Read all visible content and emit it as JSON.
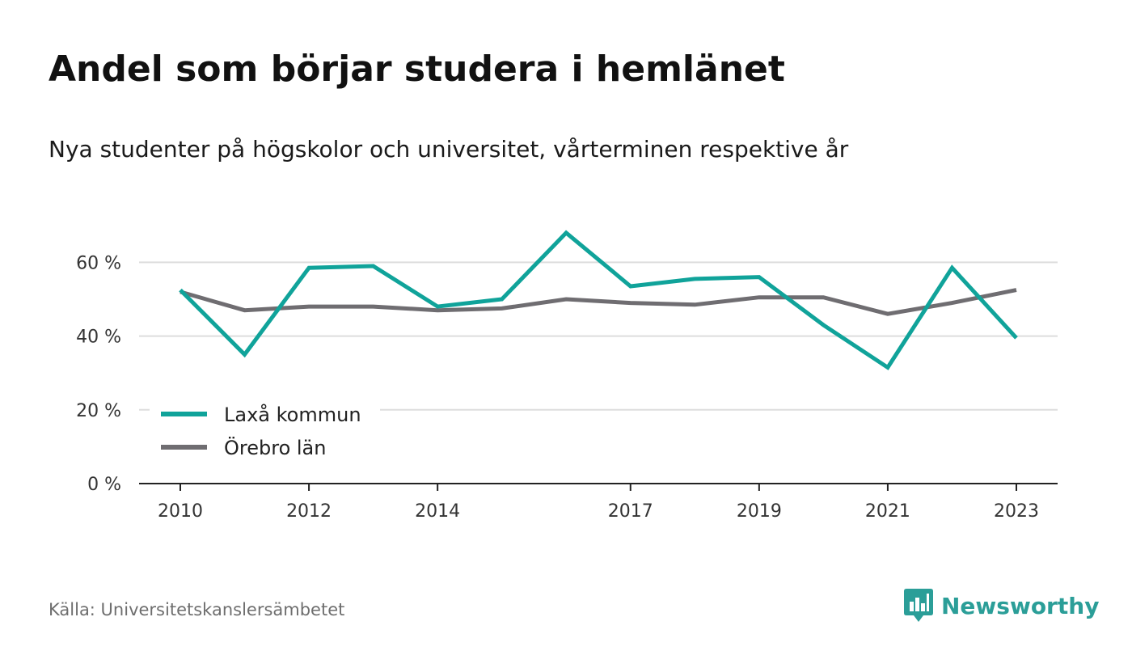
{
  "header": {
    "title": "Andel som börjar studera i hemlänet",
    "subtitle": "Nya studenter på högskolor och universitet, vårterminen respektive år"
  },
  "footer": {
    "source": "Källa: Universitetskanslersämbetet",
    "brand": "Newsworthy"
  },
  "colors": {
    "laxa": "#10a39a",
    "orebro": "#6f6d71",
    "brand": "#2b9e98",
    "grid": "#dddddd",
    "axis": "#222222"
  },
  "icons": {
    "logo": "newsworthy-bar-chart-speech-bubble-icon"
  },
  "chart_data": {
    "type": "line",
    "x": [
      2010,
      2011,
      2012,
      2013,
      2014,
      2015,
      2016,
      2017,
      2018,
      2019,
      2020,
      2021,
      2022,
      2023
    ],
    "x_tick_labels": [
      "2010",
      "2012",
      "2014",
      "2017",
      "2019",
      "2021",
      "2023"
    ],
    "y_ticks": [
      0,
      20,
      40,
      60
    ],
    "y_tick_labels": [
      "0 %",
      "20 %",
      "40 %",
      "60 %"
    ],
    "ylim": [
      0,
      70
    ],
    "grid": true,
    "legend_position": "bottom-left",
    "series": [
      {
        "name": "Laxå kommun",
        "values": [
          52.5,
          35,
          58.5,
          59,
          48,
          50,
          68,
          53.5,
          55.5,
          56,
          43,
          31.5,
          58.5,
          39.5
        ]
      },
      {
        "name": "Örebro län",
        "values": [
          52,
          47,
          48,
          48,
          47,
          47.5,
          50,
          49,
          48.5,
          50.5,
          50.5,
          46,
          49,
          52.5
        ]
      }
    ]
  }
}
